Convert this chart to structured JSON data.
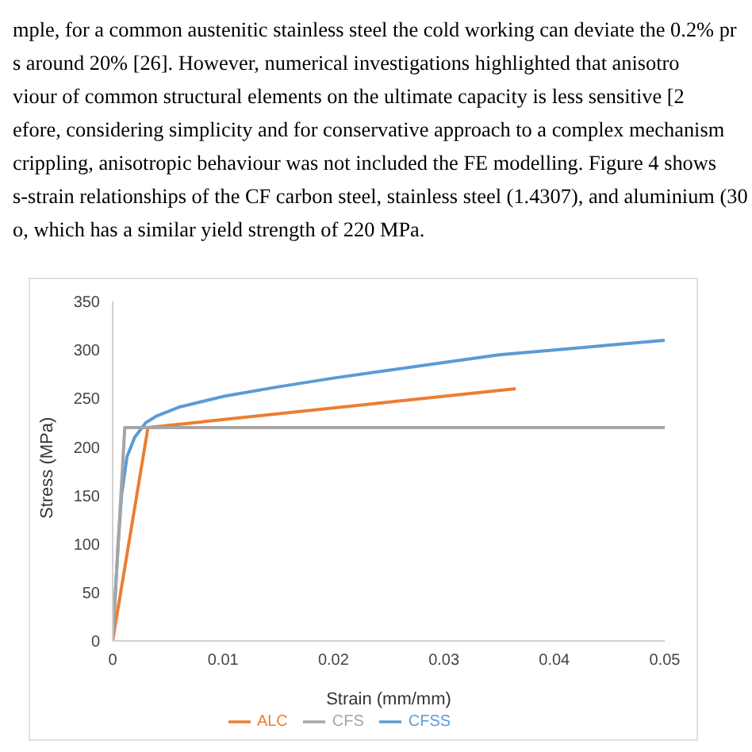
{
  "chart_data": {
    "type": "line",
    "annotations": [
      "mple, for a common austenitic stainless steel the cold working can deviate the 0.2% pr",
      "s around 20% [26]. However, numerical investigations highlighted that anisotro",
      "viour of common structural elements on the ultimate capacity is less sensitive [2",
      "efore, considering simplicity and for conservative approach to a complex mechanism",
      "crippling, anisotropic behaviour was not included the FE modelling. Figure 4 shows",
      "s-strain relationships of the CF carbon steel, stainless steel (1.4307), and aluminium (30",
      "o, which has a similar yield strength of 220 MPa."
    ],
    "xlabel": "Strain (mm/mm)",
    "ylabel": "Stress (MPa)",
    "xlim": [
      0,
      0.05
    ],
    "xticks": [
      0,
      0.01,
      0.02,
      0.03,
      0.04,
      0.05
    ],
    "ylim": [
      0,
      350
    ],
    "yticks": [
      0,
      50,
      100,
      150,
      200,
      250,
      300,
      350
    ],
    "grid": false,
    "legend": "bottom",
    "marker": "none",
    "line_style": "solid",
    "series": [
      {
        "name": "CFSS",
        "color": "#5b9bd5",
        "x": [
          0,
          0.0005,
          0.0008,
          0.0013,
          0.002,
          0.003,
          0.004,
          0.006,
          0.01,
          0.015,
          0.02,
          0.025,
          0.03,
          0.035,
          0.04,
          0.045,
          0.05
        ],
        "values": [
          0,
          100,
          150,
          190,
          210,
          225,
          232,
          241,
          252,
          262,
          271,
          279,
          287,
          295,
          300,
          305,
          310
        ]
      },
      {
        "name": "ALC",
        "color": "#ed7d31",
        "x": [
          0,
          0.0032,
          0.0365
        ],
        "values": [
          0,
          220,
          260
        ]
      },
      {
        "name": "CFS",
        "color": "#a5a5a5",
        "x": [
          0,
          0.0011,
          0.05
        ],
        "values": [
          0,
          220,
          220
        ]
      }
    ]
  }
}
